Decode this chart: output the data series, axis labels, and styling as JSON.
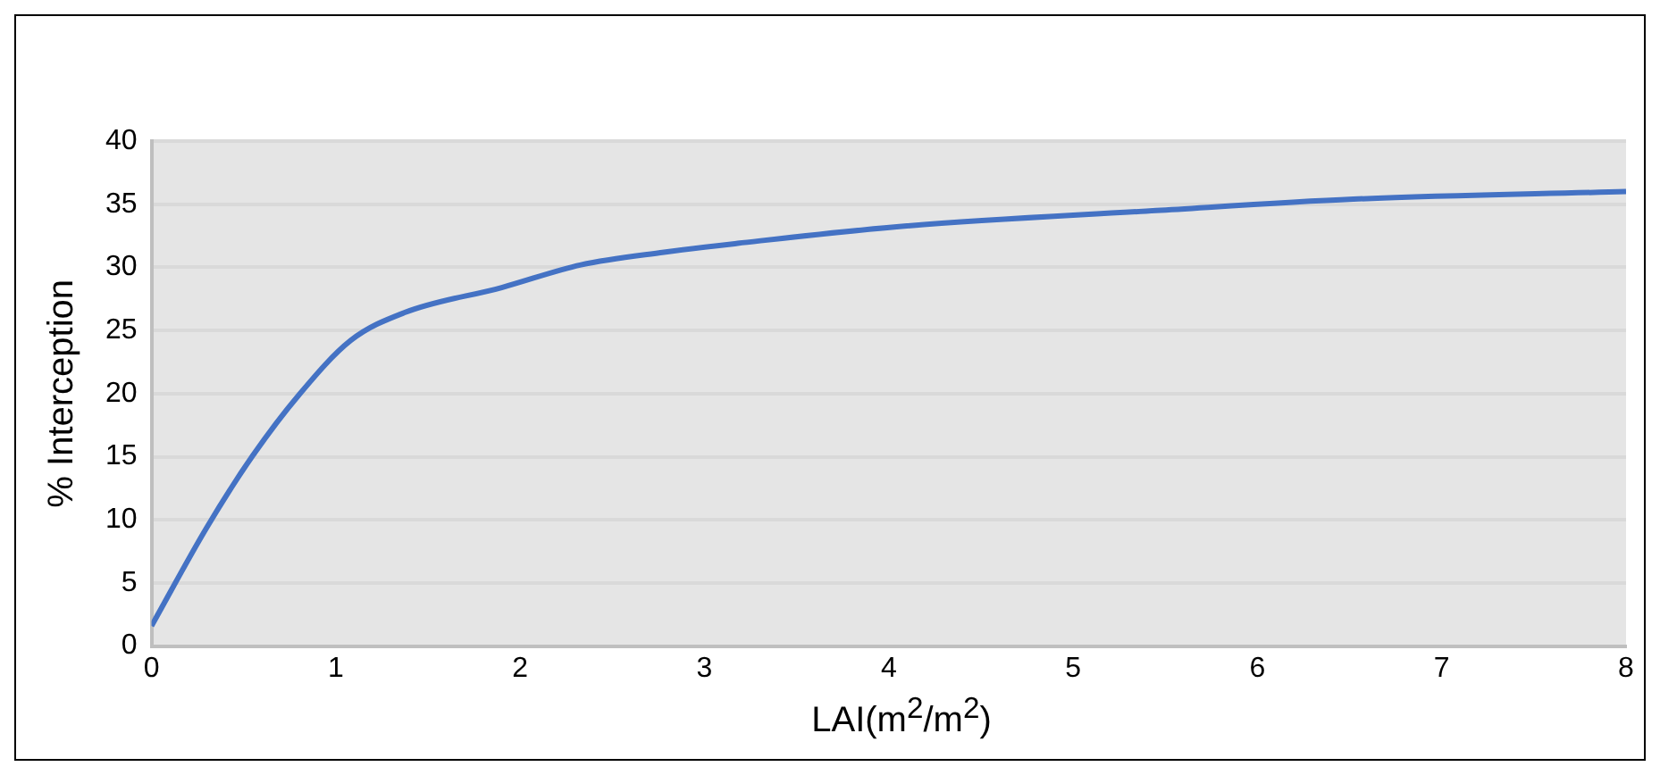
{
  "chart_data": {
    "type": "line",
    "xlabel": "LAI(m$^{2}$/m$^{2}$)",
    "ylabel": "% Interception",
    "x": [
      0,
      0.3,
      0.55,
      0.8,
      1.08,
      1.37,
      1.9,
      2.33,
      2.78,
      3.18,
      4.03,
      5.45,
      6.52,
      8
    ],
    "series": [
      {
        "color": "#4472c4",
        "values": [
          1.6,
          9.4,
          15.1,
          19.9,
          24.2,
          26.4,
          28.4,
          30.2,
          31.2,
          31.9,
          33.2,
          34.5,
          35.4,
          36.0
        ]
      }
    ],
    "xlim": [
      0,
      8
    ],
    "xticks": [
      0,
      1,
      2,
      3,
      4,
      5,
      6,
      7,
      8
    ],
    "ylim": [
      0,
      40
    ],
    "yticks": [
      0,
      5,
      10,
      15,
      20,
      25,
      30,
      35,
      40
    ],
    "grid": "y",
    "legend": false,
    "marker": "none",
    "line_style": "solid"
  }
}
